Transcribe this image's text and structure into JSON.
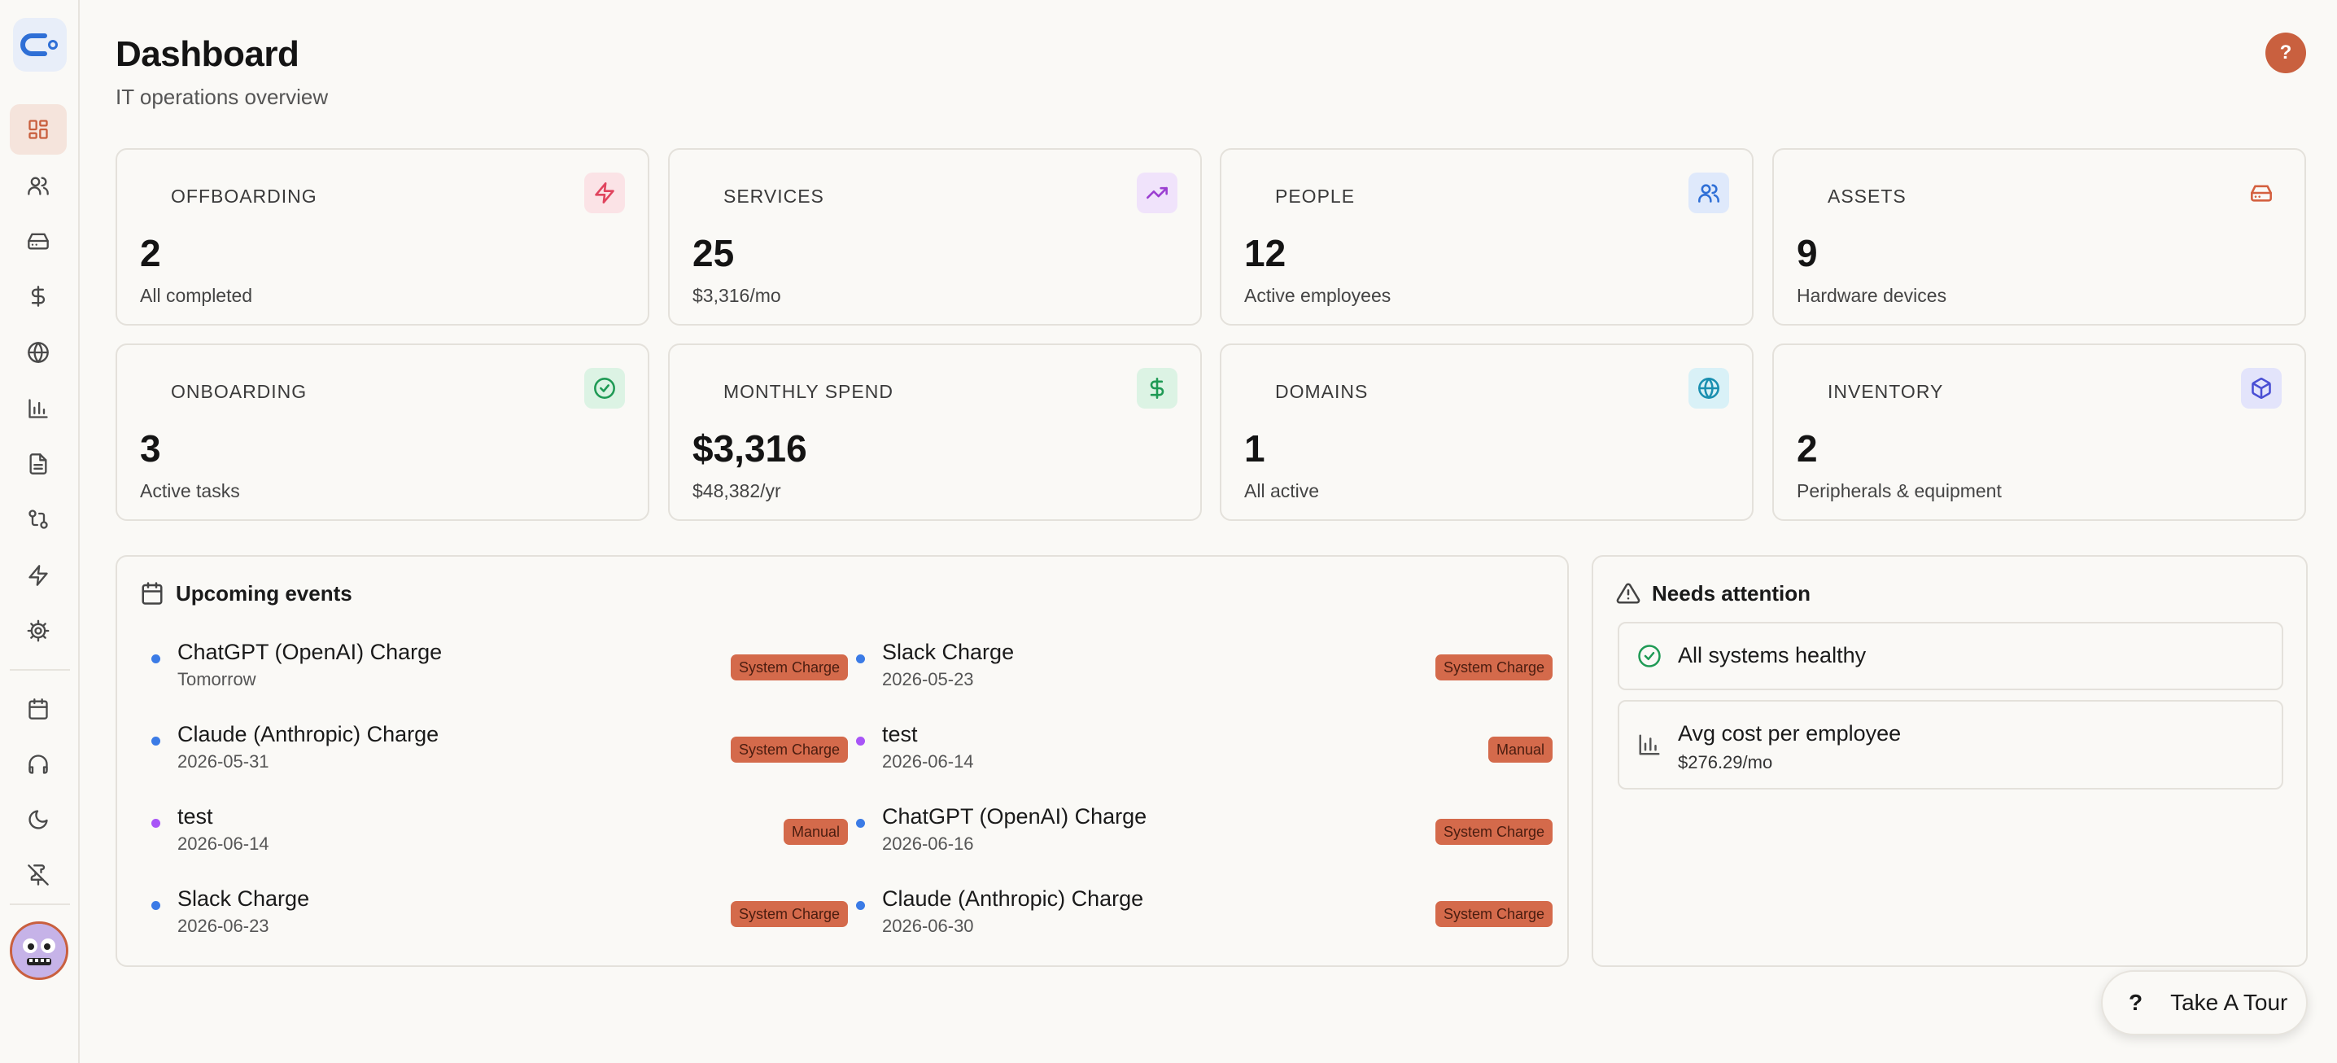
{
  "header": {
    "title": "Dashboard",
    "subtitle": "IT operations overview",
    "help_label": "?"
  },
  "sidebar": {
    "items": [
      {
        "name": "dashboard",
        "icon": "dashboard-icon",
        "active": true
      },
      {
        "name": "people",
        "icon": "users-icon"
      },
      {
        "name": "assets",
        "icon": "hard-drive-icon"
      },
      {
        "name": "spend",
        "icon": "dollar-icon"
      },
      {
        "name": "domains",
        "icon": "globe-icon"
      },
      {
        "name": "reports",
        "icon": "bar-chart-icon"
      },
      {
        "name": "documents",
        "icon": "file-icon"
      },
      {
        "name": "workflows",
        "icon": "git-compare-icon"
      },
      {
        "name": "automations",
        "icon": "zap-icon"
      },
      {
        "name": "settings",
        "icon": "gear-icon"
      },
      {
        "name": "calendar",
        "icon": "calendar-icon"
      },
      {
        "name": "support",
        "icon": "headphones-icon"
      },
      {
        "name": "theme",
        "icon": "moon-icon"
      },
      {
        "name": "unpin",
        "icon": "pin-off-icon"
      }
    ]
  },
  "stats": [
    {
      "label": "OFFBOARDING",
      "value": "2",
      "sub": "All completed",
      "icon": "zap-icon",
      "color": "#e0445e",
      "bg": "#fbe3e6"
    },
    {
      "label": "SERVICES",
      "value": "25",
      "sub": "$3,316/mo",
      "icon": "trending-up-icon",
      "color": "#9b3fd1",
      "bg": "#f0e3fb"
    },
    {
      "label": "PEOPLE",
      "value": "12",
      "sub": "Active employees",
      "icon": "users-icon",
      "color": "#2f6fd6",
      "bg": "#dfe9fb"
    },
    {
      "label": "ASSETS",
      "value": "9",
      "sub": "Hardware devices",
      "icon": "hard-drive-icon",
      "color": "#d4603f",
      "bg": "#faf9f6"
    },
    {
      "label": "ONBOARDING",
      "value": "3",
      "sub": "Active tasks",
      "icon": "check-circle-icon",
      "color": "#1f9a55",
      "bg": "#dcf3e4"
    },
    {
      "label": "MONTHLY SPEND",
      "value": "$3,316",
      "sub": "$48,382/yr",
      "icon": "dollar-icon",
      "color": "#1f9a55",
      "bg": "#dcf3e4"
    },
    {
      "label": "DOMAINS",
      "value": "1",
      "sub": "All active",
      "icon": "globe-icon",
      "color": "#1a8fb0",
      "bg": "#d9f1f7"
    },
    {
      "label": "INVENTORY",
      "value": "2",
      "sub": "Peripherals & equipment",
      "icon": "box-icon",
      "color": "#4a4fd4",
      "bg": "#e3e4fb"
    }
  ],
  "events": {
    "title": "Upcoming events",
    "items": [
      {
        "name": "ChatGPT (OpenAI) Charge",
        "date": "Tomorrow",
        "badge": "System Charge",
        "dot": "#3b7be6"
      },
      {
        "name": "Slack Charge",
        "date": "2026-05-23",
        "badge": "System Charge",
        "dot": "#3b7be6"
      },
      {
        "name": "Claude (Anthropic) Charge",
        "date": "2026-05-31",
        "badge": "System Charge",
        "dot": "#3b7be6"
      },
      {
        "name": "test",
        "date": "2026-06-14",
        "badge": "Manual",
        "dot": "#a855f7"
      },
      {
        "name": "test",
        "date": "2026-06-14",
        "badge": "Manual",
        "dot": "#a855f7"
      },
      {
        "name": "ChatGPT (OpenAI) Charge",
        "date": "2026-06-16",
        "badge": "System Charge",
        "dot": "#3b7be6"
      },
      {
        "name": "Slack Charge",
        "date": "2026-06-23",
        "badge": "System Charge",
        "dot": "#3b7be6"
      },
      {
        "name": "Claude (Anthropic) Charge",
        "date": "2026-06-30",
        "badge": "System Charge",
        "dot": "#3b7be6"
      }
    ]
  },
  "attention": {
    "title": "Needs attention",
    "healthy": "All systems healthy",
    "avg_label": "Avg cost per employee",
    "avg_value": "$276.29/mo"
  },
  "tour": {
    "icon": "?",
    "label": "Take A Tour"
  }
}
